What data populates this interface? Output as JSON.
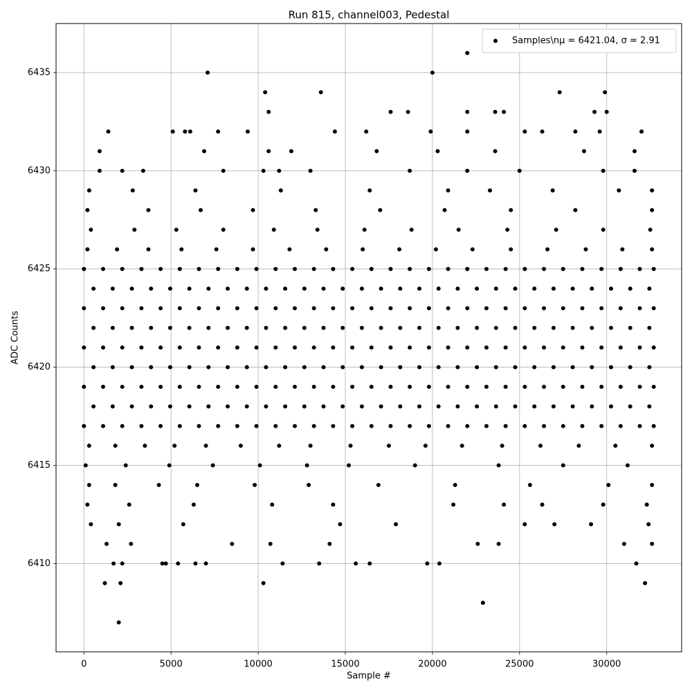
{
  "chart_data": {
    "type": "scatter",
    "title": "Run 815, channel003, Pedestal",
    "x_label": "Sample #",
    "y_label": "ADC Counts",
    "legend": "upper right",
    "grid": true,
    "xlim": [
      -1600,
      34300
    ],
    "ylim": [
      6405.5,
      6437.5
    ],
    "xticks": [
      0,
      5000,
      10000,
      15000,
      20000,
      25000,
      30000
    ],
    "yticks": [
      6410,
      6415,
      6420,
      6425,
      6430,
      6435
    ],
    "series": [
      {
        "name": "Samples\\nμ = 6421.04, σ = 2.91",
        "color": "#000000",
        "x": [
          0,
          1100,
          2200,
          3300,
          4400,
          5500,
          6600,
          7700,
          8800,
          9900,
          11000,
          12100,
          13200,
          14300,
          15400,
          16500,
          17600,
          18700,
          19800,
          20900,
          22000,
          23100,
          24200,
          25300,
          26400,
          27500,
          28600,
          29700,
          30800,
          31900,
          32700,
          550,
          1650,
          2750,
          3850,
          4950,
          6050,
          7150,
          8250,
          9350,
          10450,
          11550,
          12650,
          13750,
          14850,
          15950,
          17050,
          18150,
          19250,
          20350,
          21450,
          22550,
          23650,
          24750,
          25850,
          26950,
          28050,
          29150,
          30250,
          31350,
          32450,
          0,
          1100,
          2200,
          3300,
          4400,
          5500,
          6600,
          7700,
          8800,
          9900,
          11000,
          12100,
          13200,
          14300,
          15400,
          16500,
          17600,
          18700,
          19800,
          20900,
          22000,
          23100,
          24200,
          25300,
          26400,
          27500,
          28600,
          29700,
          30800,
          31900,
          32700,
          550,
          1650,
          2750,
          3850,
          4950,
          6050,
          7150,
          8250,
          9350,
          10450,
          11550,
          12650,
          13750,
          14850,
          15950,
          17050,
          18150,
          19250,
          20350,
          21450,
          22550,
          23650,
          24750,
          25850,
          26950,
          28050,
          29150,
          30250,
          31350,
          32450,
          0,
          1100,
          2200,
          3300,
          4400,
          5500,
          6600,
          7700,
          8800,
          9900,
          11000,
          12100,
          13200,
          14300,
          15400,
          16500,
          17600,
          18700,
          19800,
          20900,
          22000,
          23100,
          24200,
          25300,
          26400,
          27500,
          28600,
          29700,
          30800,
          31900,
          32700,
          550,
          1650,
          2750,
          3850,
          4950,
          6050,
          7150,
          8250,
          9350,
          10450,
          11550,
          12650,
          13750,
          14850,
          15950,
          17050,
          18150,
          19250,
          20350,
          21450,
          22550,
          23650,
          24750,
          25850,
          26950,
          28050,
          29150,
          30250,
          31350,
          32450,
          0,
          1100,
          2200,
          3300,
          4400,
          5500,
          6600,
          7700,
          8800,
          9900,
          11000,
          12100,
          13200,
          14300,
          15400,
          16500,
          17600,
          18700,
          19800,
          20900,
          22000,
          23100,
          24200,
          25300,
          26400,
          27500,
          28600,
          29700,
          30800,
          31900,
          32700,
          550,
          1650,
          2750,
          3850,
          4950,
          6050,
          7150,
          8250,
          9350,
          10450,
          11550,
          12650,
          13750,
          14850,
          15950,
          17050,
          18150,
          19250,
          20350,
          21450,
          22550,
          23650,
          24750,
          25850,
          26950,
          28050,
          29150,
          30250,
          31350,
          32450,
          0,
          1100,
          2200,
          3300,
          4400,
          5500,
          6600,
          7700,
          8800,
          9900,
          11000,
          12100,
          13200,
          14300,
          15400,
          16500,
          17600,
          18700,
          19800,
          20900,
          22000,
          23100,
          24200,
          25300,
          26400,
          27500,
          28600,
          29700,
          30800,
          31900,
          32700,
          300,
          1800,
          3500,
          5200,
          7000,
          9000,
          11200,
          13000,
          15300,
          17500,
          19600,
          21700,
          24000,
          26200,
          28400,
          30500,
          32600,
          200,
          1900,
          3700,
          5600,
          7600,
          9700,
          11800,
          13900,
          16000,
          18100,
          20200,
          22300,
          24500,
          26600,
          28800,
          30900,
          32600,
          100,
          2400,
          4900,
          7400,
          10100,
          12800,
          15200,
          19000,
          23800,
          27500,
          31200,
          400,
          2900,
          5300,
          8000,
          10900,
          13400,
          16100,
          18800,
          21500,
          24300,
          27100,
          29800,
          32500,
          200,
          3700,
          6700,
          9700,
          13300,
          17000,
          20700,
          24500,
          28200,
          32600,
          300,
          1800,
          4300,
          6500,
          9800,
          12900,
          16900,
          21300,
          25600,
          30100,
          32600,
          200,
          2600,
          6300,
          10800,
          14300,
          21200,
          24100,
          26300,
          29800,
          32300,
          300,
          2800,
          6400,
          11300,
          16400,
          20900,
          23300,
          26900,
          30700,
          32600,
          900,
          2200,
          3400,
          8000,
          10300,
          11200,
          13000,
          18700,
          22000,
          25000,
          29800,
          31600,
          900,
          6900,
          10600,
          11900,
          16800,
          20300,
          23600,
          28700,
          31600,
          1400,
          5100,
          5800,
          6100,
          7700,
          9400,
          14400,
          16200,
          19900,
          22000,
          25300,
          26300,
          28200,
          29600,
          32000,
          10600,
          17600,
          18600,
          23600,
          24100,
          22000,
          29300,
          30000,
          10400,
          13600,
          27300,
          29900,
          7100,
          20000,
          22000,
          400,
          2000,
          5700,
          14700,
          17900,
          25300,
          27000,
          29100,
          32400,
          1300,
          2700,
          8500,
          10700,
          14100,
          22600,
          23800,
          31000,
          32600,
          1700,
          2200,
          4500,
          4700,
          5400,
          6400,
          7000,
          11400,
          13500,
          15600,
          16400,
          19700,
          20400,
          31700,
          1200,
          2100,
          10300,
          32200,
          22900,
          2000
        ],
        "values": [
          6417,
          6417,
          6417,
          6417,
          6417,
          6417,
          6417,
          6417,
          6417,
          6417,
          6417,
          6417,
          6417,
          6417,
          6417,
          6417,
          6417,
          6417,
          6417,
          6417,
          6417,
          6417,
          6417,
          6417,
          6417,
          6417,
          6417,
          6417,
          6417,
          6417,
          6417,
          6418,
          6418,
          6418,
          6418,
          6418,
          6418,
          6418,
          6418,
          6418,
          6418,
          6418,
          6418,
          6418,
          6418,
          6418,
          6418,
          6418,
          6418,
          6418,
          6418,
          6418,
          6418,
          6418,
          6418,
          6418,
          6418,
          6418,
          6418,
          6418,
          6418,
          6419,
          6419,
          6419,
          6419,
          6419,
          6419,
          6419,
          6419,
          6419,
          6419,
          6419,
          6419,
          6419,
          6419,
          6419,
          6419,
          6419,
          6419,
          6419,
          6419,
          6419,
          6419,
          6419,
          6419,
          6419,
          6419,
          6419,
          6419,
          6419,
          6419,
          6419,
          6420,
          6420,
          6420,
          6420,
          6420,
          6420,
          6420,
          6420,
          6420,
          6420,
          6420,
          6420,
          6420,
          6420,
          6420,
          6420,
          6420,
          6420,
          6420,
          6420,
          6420,
          6420,
          6420,
          6420,
          6420,
          6420,
          6420,
          6420,
          6420,
          6420,
          6421,
          6421,
          6421,
          6421,
          6421,
          6421,
          6421,
          6421,
          6421,
          6421,
          6421,
          6421,
          6421,
          6421,
          6421,
          6421,
          6421,
          6421,
          6421,
          6421,
          6421,
          6421,
          6421,
          6421,
          6421,
          6421,
          6421,
          6421,
          6421,
          6421,
          6421,
          6422,
          6422,
          6422,
          6422,
          6422,
          6422,
          6422,
          6422,
          6422,
          6422,
          6422,
          6422,
          6422,
          6422,
          6422,
          6422,
          6422,
          6422,
          6422,
          6422,
          6422,
          6422,
          6422,
          6422,
          6422,
          6422,
          6422,
          6422,
          6422,
          6422,
          6423,
          6423,
          6423,
          6423,
          6423,
          6423,
          6423,
          6423,
          6423,
          6423,
          6423,
          6423,
          6423,
          6423,
          6423,
          6423,
          6423,
          6423,
          6423,
          6423,
          6423,
          6423,
          6423,
          6423,
          6423,
          6423,
          6423,
          6423,
          6423,
          6423,
          6423,
          6424,
          6424,
          6424,
          6424,
          6424,
          6424,
          6424,
          6424,
          6424,
          6424,
          6424,
          6424,
          6424,
          6424,
          6424,
          6424,
          6424,
          6424,
          6424,
          6424,
          6424,
          6424,
          6424,
          6424,
          6424,
          6424,
          6424,
          6424,
          6424,
          6424,
          6425,
          6425,
          6425,
          6425,
          6425,
          6425,
          6425,
          6425,
          6425,
          6425,
          6425,
          6425,
          6425,
          6425,
          6425,
          6425,
          6425,
          6425,
          6425,
          6425,
          6425,
          6425,
          6425,
          6425,
          6425,
          6425,
          6425,
          6425,
          6425,
          6425,
          6425,
          6416,
          6416,
          6416,
          6416,
          6416,
          6416,
          6416,
          6416,
          6416,
          6416,
          6416,
          6416,
          6416,
          6416,
          6416,
          6416,
          6416,
          6426,
          6426,
          6426,
          6426,
          6426,
          6426,
          6426,
          6426,
          6426,
          6426,
          6426,
          6426,
          6426,
          6426,
          6426,
          6426,
          6426,
          6415,
          6415,
          6415,
          6415,
          6415,
          6415,
          6415,
          6415,
          6415,
          6415,
          6415,
          6427,
          6427,
          6427,
          6427,
          6427,
          6427,
          6427,
          6427,
          6427,
          6427,
          6427,
          6427,
          6427,
          6428,
          6428,
          6428,
          6428,
          6428,
          6428,
          6428,
          6428,
          6428,
          6428,
          6414,
          6414,
          6414,
          6414,
          6414,
          6414,
          6414,
          6414,
          6414,
          6414,
          6414,
          6413,
          6413,
          6413,
          6413,
          6413,
          6413,
          6413,
          6413,
          6413,
          6413,
          6429,
          6429,
          6429,
          6429,
          6429,
          6429,
          6429,
          6429,
          6429,
          6429,
          6430,
          6430,
          6430,
          6430,
          6430,
          6430,
          6430,
          6430,
          6430,
          6430,
          6430,
          6430,
          6431,
          6431,
          6431,
          6431,
          6431,
          6431,
          6431,
          6431,
          6431,
          6432,
          6432,
          6432,
          6432,
          6432,
          6432,
          6432,
          6432,
          6432,
          6432,
          6432,
          6432,
          6432,
          6432,
          6432,
          6433,
          6433,
          6433,
          6433,
          6433,
          6433,
          6433,
          6433,
          6434,
          6434,
          6434,
          6434,
          6435,
          6435,
          6436,
          6412,
          6412,
          6412,
          6412,
          6412,
          6412,
          6412,
          6412,
          6412,
          6411,
          6411,
          6411,
          6411,
          6411,
          6411,
          6411,
          6411,
          6411,
          6410,
          6410,
          6410,
          6410,
          6410,
          6410,
          6410,
          6410,
          6410,
          6410,
          6410,
          6410,
          6410,
          6410,
          6409,
          6409,
          6409,
          6409,
          6408,
          6407
        ]
      }
    ]
  }
}
